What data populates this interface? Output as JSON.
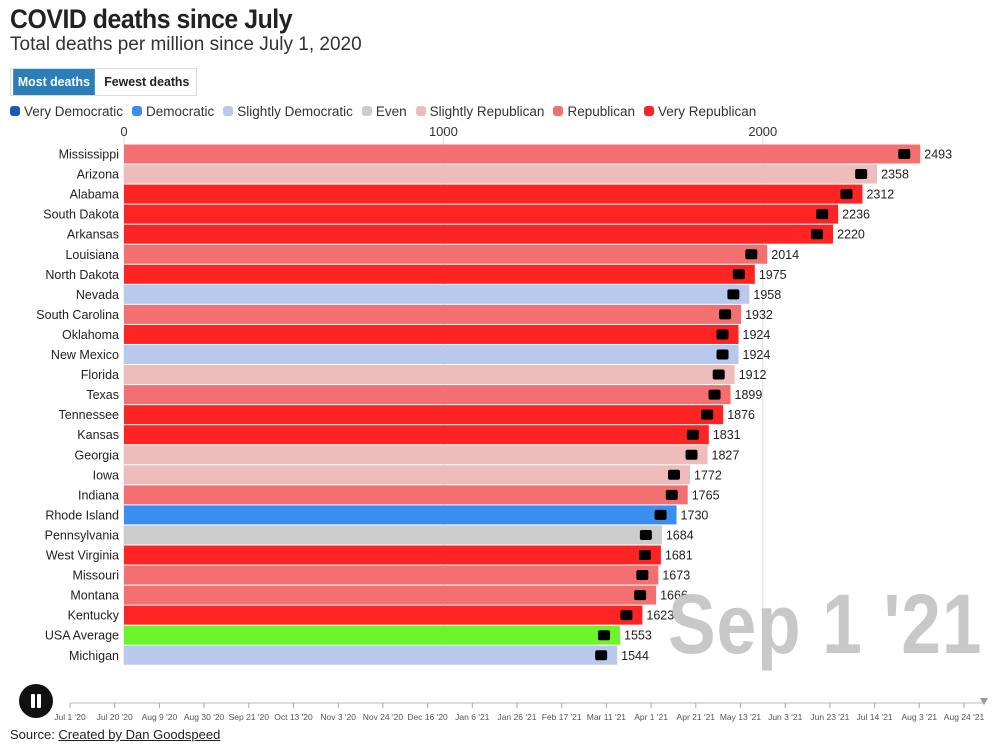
{
  "header": {
    "title": "COVID deaths since July",
    "subtitle": "Total deaths per million since July 1, 2020"
  },
  "toggle": {
    "most_label": "Most deaths",
    "fewest_label": "Fewest deaths",
    "active": "most"
  },
  "legend": [
    {
      "label": "Very Democratic",
      "color": "#1a5bb5"
    },
    {
      "label": "Democratic",
      "color": "#3a8ef0"
    },
    {
      "label": "Slightly Democratic",
      "color": "#b9c9ee"
    },
    {
      "label": "Even",
      "color": "#cccccc"
    },
    {
      "label": "Slightly Republican",
      "color": "#efbcbc"
    },
    {
      "label": "Republican",
      "color": "#f47070"
    },
    {
      "label": "Very Republican",
      "color": "#ff2424"
    }
  ],
  "current_date": "Sep 1 '21",
  "controls": {
    "play_state": "playing"
  },
  "timeline": {
    "ticks": [
      "Jul 1 '20",
      "Jul 20 '20",
      "Aug 9 '20",
      "Aug 30 '20",
      "Sep 21 '20",
      "Oct 13 '20",
      "Nov 3 '20",
      "Nov 24 '20",
      "Dec 16 '20",
      "Jan 6 '21",
      "Jan 26 '21",
      "Feb 17 '21",
      "Mar 11 '21",
      "Apr 1 '21",
      "Apr 21 '21",
      "May 13 '21",
      "Jun 3 '21",
      "Jun 23 '21",
      "Jul 14 '21",
      "Aug 3 '21",
      "Aug 24 '21"
    ]
  },
  "source": {
    "prefix": "Source: ",
    "link_text": "Created by Dan Goodspeed"
  },
  "chart_data": {
    "type": "bar",
    "orientation": "horizontal",
    "title": "COVID deaths since July",
    "subtitle": "Total deaths per million since July 1, 2020",
    "xlim": [
      0,
      2600
    ],
    "x_ticks": [
      0,
      1000,
      2000
    ],
    "categories": [
      "Mississippi",
      "Arizona",
      "Alabama",
      "South Dakota",
      "Arkansas",
      "Louisiana",
      "North Dakota",
      "Nevada",
      "South Carolina",
      "Oklahoma",
      "New Mexico",
      "Florida",
      "Texas",
      "Tennessee",
      "Kansas",
      "Georgia",
      "Iowa",
      "Indiana",
      "Rhode Island",
      "Pennsylvania",
      "West Virginia",
      "Missouri",
      "Montana",
      "Kentucky",
      "USA Average",
      "Michigan"
    ],
    "values": [
      2493,
      2358,
      2312,
      2236,
      2220,
      2014,
      1975,
      1958,
      1932,
      1924,
      1924,
      1912,
      1899,
      1876,
      1831,
      1827,
      1772,
      1765,
      1730,
      1684,
      1681,
      1673,
      1666,
      1623,
      1553,
      1544
    ],
    "leanings": [
      "Republican",
      "Slightly Republican",
      "Very Republican",
      "Very Republican",
      "Very Republican",
      "Republican",
      "Very Republican",
      "Slightly Democratic",
      "Republican",
      "Very Republican",
      "Slightly Democratic",
      "Slightly Republican",
      "Republican",
      "Very Republican",
      "Very Republican",
      "Slightly Republican",
      "Slightly Republican",
      "Republican",
      "Democratic",
      "Even",
      "Very Republican",
      "Republican",
      "Republican",
      "Very Republican",
      "USA",
      "Slightly Democratic"
    ],
    "leaning_colors": {
      "Very Democratic": "#1a5bb5",
      "Democratic": "#3a8ef0",
      "Slightly Democratic": "#b9c9ee",
      "Even": "#cccccc",
      "Slightly Republican": "#efbcbc",
      "Republican": "#f47070",
      "Very Republican": "#ff2424",
      "USA": "#6cf52a"
    }
  }
}
